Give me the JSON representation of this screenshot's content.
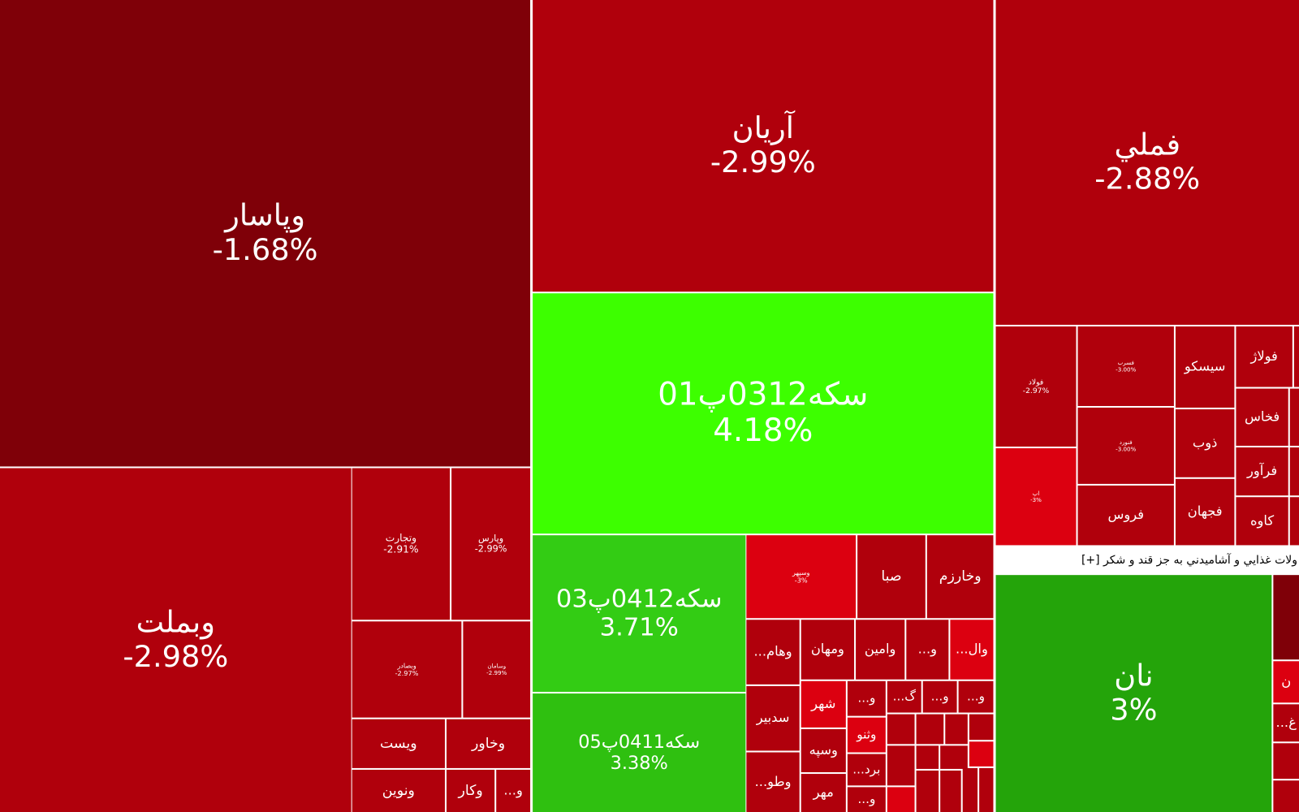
{
  "chart_data": {
    "type": "treemap",
    "header": "ولات غذايي و آشاميدني به جز قند و شکر [+]",
    "tiles": [
      {
        "name": "وپاسار",
        "value": -1.68,
        "value_label": "-1.68%",
        "color": "#7f0008"
      },
      {
        "name": "وبملت",
        "value": -2.98,
        "value_label": "-2.98%",
        "color": "#b0000c"
      },
      {
        "name": "وتجارت",
        "value": -2.91,
        "value_label": "-2.91%",
        "color": "#b0000c"
      },
      {
        "name": "وپارس",
        "value": -2.99,
        "value_label": "-2.99%",
        "color": "#b0000c"
      },
      {
        "name": "وبصادر",
        "value": -2.97,
        "value_label": "-2.97%",
        "color": "#b0000c"
      },
      {
        "name": "وسامان",
        "value": -2.99,
        "value_label": "-2.99%",
        "color": "#b0000c"
      },
      {
        "name": "ويست",
        "color": "#b0000c"
      },
      {
        "name": "وخاور",
        "color": "#b0000c"
      },
      {
        "name": "ونوين",
        "color": "#b0000c"
      },
      {
        "name": "وكار",
        "color": "#b0000c"
      },
      {
        "name": "...و",
        "color": "#b0000c"
      },
      {
        "name": "آريان",
        "value": -2.99,
        "value_label": "-2.99%",
        "color": "#b0000c"
      },
      {
        "name": "سکه0312پ01",
        "value": 4.18,
        "value_label": "4.18%",
        "color": "#3dff00"
      },
      {
        "name": "سکه0412پ03",
        "value": 3.71,
        "value_label": "3.71%",
        "color": "#33cc14"
      },
      {
        "name": "سکه0411پ05",
        "value": 3.38,
        "value_label": "3.38%",
        "color": "#2fc010"
      },
      {
        "name": "وسپهر",
        "value": -3,
        "value_label": "-3%",
        "color": "#dc0010"
      },
      {
        "name": "صبا",
        "color": "#b0000c"
      },
      {
        "name": "وخارزم",
        "color": "#b0000c"
      },
      {
        "name": "...وهام",
        "color": "#b0000c"
      },
      {
        "name": "ومهان",
        "color": "#b0000c"
      },
      {
        "name": "وامين",
        "color": "#b0000c"
      },
      {
        "name": "...و",
        "color": "#b0000c"
      },
      {
        "name": "...وال",
        "color": "#dc0010"
      },
      {
        "name": "سدبير",
        "color": "#b0000c"
      },
      {
        "name": "...وطو",
        "color": "#b0000c"
      },
      {
        "name": "شهر",
        "color": "#dc0010"
      },
      {
        "name": "وسپه",
        "color": "#b0000c"
      },
      {
        "name": "مهر",
        "color": "#b0000c"
      },
      {
        "name": "...و",
        "color": "#b0000c"
      },
      {
        "name": "وثنو",
        "color": "#dc0010"
      },
      {
        "name": "...برد",
        "color": "#b0000c"
      },
      {
        "name": "...و",
        "color": "#b0000c"
      },
      {
        "name": "...گ",
        "color": "#b0000c"
      },
      {
        "name": "...و",
        "color": "#b0000c"
      },
      {
        "name": "...و",
        "color": "#b0000c"
      },
      {
        "name": "فملي",
        "value": -2.88,
        "value_label": "-2.88%",
        "color": "#b0000c"
      },
      {
        "name": "فولاد",
        "value": -2.97,
        "value_label": "-2.97%",
        "color": "#b0000c"
      },
      {
        "name": "اپ",
        "value": -3,
        "value_label": "-3%",
        "color": "#dc0010"
      },
      {
        "name": "فسرب",
        "value": -3,
        "value_label": "-3.00%",
        "color": "#b0000c"
      },
      {
        "name": "فنورد",
        "value": -3,
        "value_label": "-3.00%",
        "color": "#b0000c"
      },
      {
        "name": "فروس",
        "color": "#b0000c"
      },
      {
        "name": "سيسكو",
        "color": "#b0000c"
      },
      {
        "name": "ذوب",
        "color": "#b0000c"
      },
      {
        "name": "فجهان",
        "color": "#b0000c"
      },
      {
        "name": "فولاژ",
        "color": "#b0000c"
      },
      {
        "name": "فخاس",
        "color": "#b0000c"
      },
      {
        "name": "فرآور",
        "color": "#b0000c"
      },
      {
        "name": "كاوه",
        "color": "#b0000c"
      },
      {
        "name": "نان",
        "value": 3,
        "value_label": "3%",
        "color": "#24a40a"
      },
      {
        "name": "ن",
        "color": "#dc0010"
      },
      {
        "name": "...غ",
        "color": "#b0000c"
      }
    ]
  }
}
